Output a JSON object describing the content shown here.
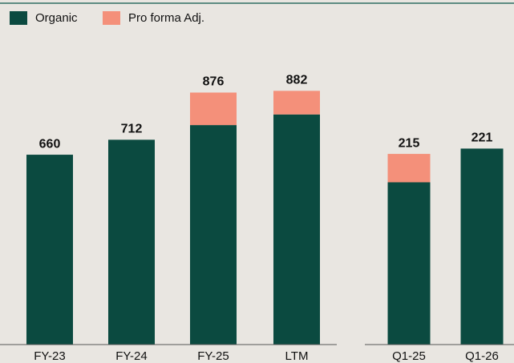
{
  "chart_data": [
    {
      "type": "stacked_bar",
      "categories": [
        "FY-23",
        "FY-24",
        "FY-25",
        "LTM"
      ],
      "series": [
        {
          "name": "Organic",
          "color": "#0b4a40",
          "values": [
            660,
            712,
            763,
            800
          ]
        },
        {
          "name": "Pro forma Adj.",
          "color": "#f4907a",
          "values": [
            0,
            0,
            113,
            82
          ]
        }
      ],
      "totals": [
        660,
        712,
        876,
        882
      ],
      "ylim": [
        0,
        1000
      ]
    },
    {
      "type": "stacked_bar",
      "categories": [
        "Q1-25",
        "Q1-26"
      ],
      "series": [
        {
          "color": "#0b4a40",
          "values": [
            183,
            221
          ]
        },
        {
          "color": "#f4907a",
          "values": [
            32,
            0
          ]
        }
      ],
      "totals": [
        215,
        221
      ],
      "ylim": [
        0,
        300
      ]
    }
  ]
}
